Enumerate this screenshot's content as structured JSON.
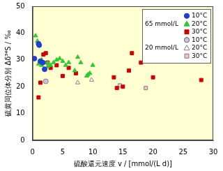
{
  "chart_data": {
    "type": "scatter",
    "x_label": "硫酸還元速度 v / [mmol/(L d)]",
    "y_label": "硫黄同位体分別 Δδ³⁴S / ‰",
    "xlim": [
      0,
      30
    ],
    "xticks": [
      0,
      5,
      10,
      15,
      20,
      25,
      30
    ],
    "ylim": [
      0,
      50
    ],
    "yticks": [
      0,
      10,
      20,
      30,
      40,
      50
    ],
    "grid": false,
    "legend": "upper right",
    "series": [
      {
        "name": "10°C",
        "group": "65 mmol/L",
        "color": "#1f3fd0",
        "marker": "circle",
        "x": [
          0.3,
          1.0,
          1.1,
          1.3,
          1.7,
          2.0
        ],
        "values": [
          30.5,
          36,
          35.5,
          29.5,
          29,
          26.5
        ]
      },
      {
        "name": "20°C",
        "group": "65 mmol/L",
        "color": "#33c833",
        "marker": "triangle",
        "x": [
          0.5,
          0.8,
          1.0,
          1.5,
          1.5,
          2.5,
          2.5,
          3.0,
          3.5,
          4.0,
          4.5,
          5.0,
          5.5,
          6.0,
          7.0,
          7.5,
          8.0,
          9.0,
          9.2,
          9.5,
          10.0
        ],
        "values": [
          39,
          37,
          28.5,
          30,
          28,
          29,
          27.5,
          28,
          29,
          30,
          30.5,
          29.5,
          28,
          29,
          26,
          31,
          29,
          24,
          24.5,
          25,
          28
        ]
      },
      {
        "name": "30°C",
        "group": "65 mmol/L",
        "color": "#cc0000",
        "marker": "square",
        "x": [
          1.0,
          1.3,
          1.8,
          2.2,
          2.5,
          3.0,
          4.0,
          5.0,
          6.0,
          7.2,
          13.5,
          14.0,
          15.0,
          16.0,
          16.5,
          18.0,
          20.0,
          28.0
        ],
        "values": [
          16,
          21.5,
          32,
          32.5,
          29,
          27,
          28,
          24,
          27,
          25,
          23.5,
          19.5,
          20,
          26,
          32.5,
          29,
          23.5,
          22.5
        ]
      },
      {
        "name": "10°C",
        "group": "20 mmol/L",
        "color": "#c4c4e4",
        "marker": "circle",
        "x": [
          2.2
        ],
        "values": [
          22
        ]
      },
      {
        "name": "20°C",
        "group": "20 mmol/L",
        "color": "#ffffff",
        "marker": "triangle",
        "x": [
          7.5,
          9.8
        ],
        "values": [
          21.5,
          22.5
        ]
      },
      {
        "name": "30°C",
        "group": "20 mmol/L",
        "color": "#f2c4c4",
        "marker": "square",
        "x": [
          14.5,
          18.8
        ],
        "values": [
          20.5,
          19.5
        ]
      }
    ]
  }
}
